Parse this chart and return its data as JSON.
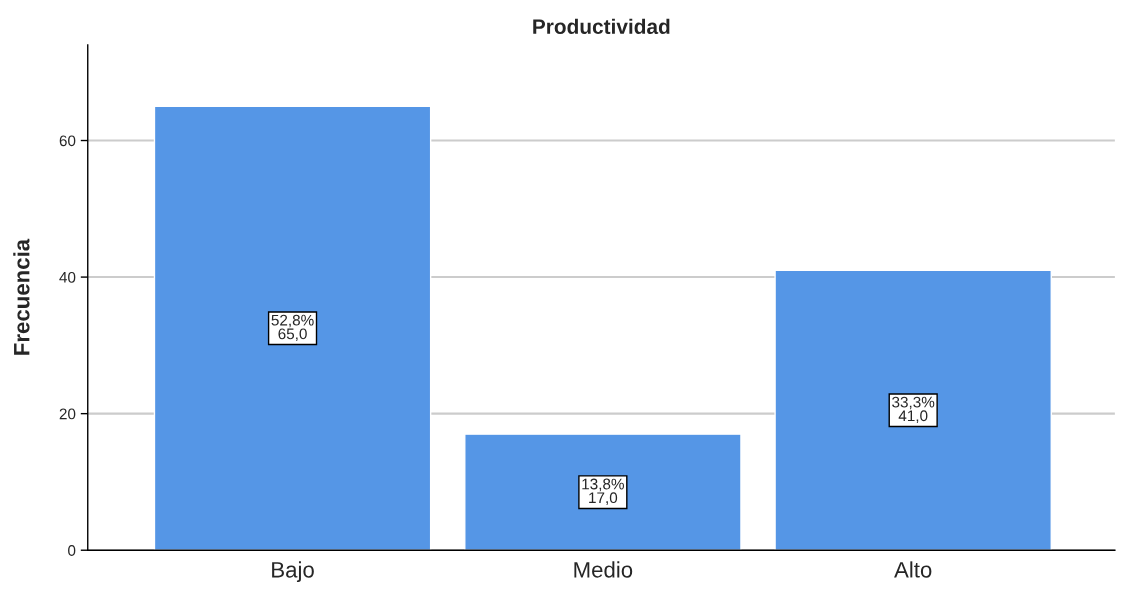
{
  "chart_data": {
    "type": "bar",
    "title": "Productividad",
    "ylabel": "Frecuencia",
    "categories": [
      "Bajo",
      "Medio",
      "Alto"
    ],
    "values": [
      65,
      17,
      41
    ],
    "value_labels": [
      "52,8%\n65,0",
      "13,8%\n17,0",
      "33,3%\n41,0"
    ],
    "color": "#5596e6",
    "ylim": [
      0,
      74
    ],
    "yticks": [
      0,
      20,
      40,
      60
    ],
    "grid": "y",
    "legend": false
  }
}
